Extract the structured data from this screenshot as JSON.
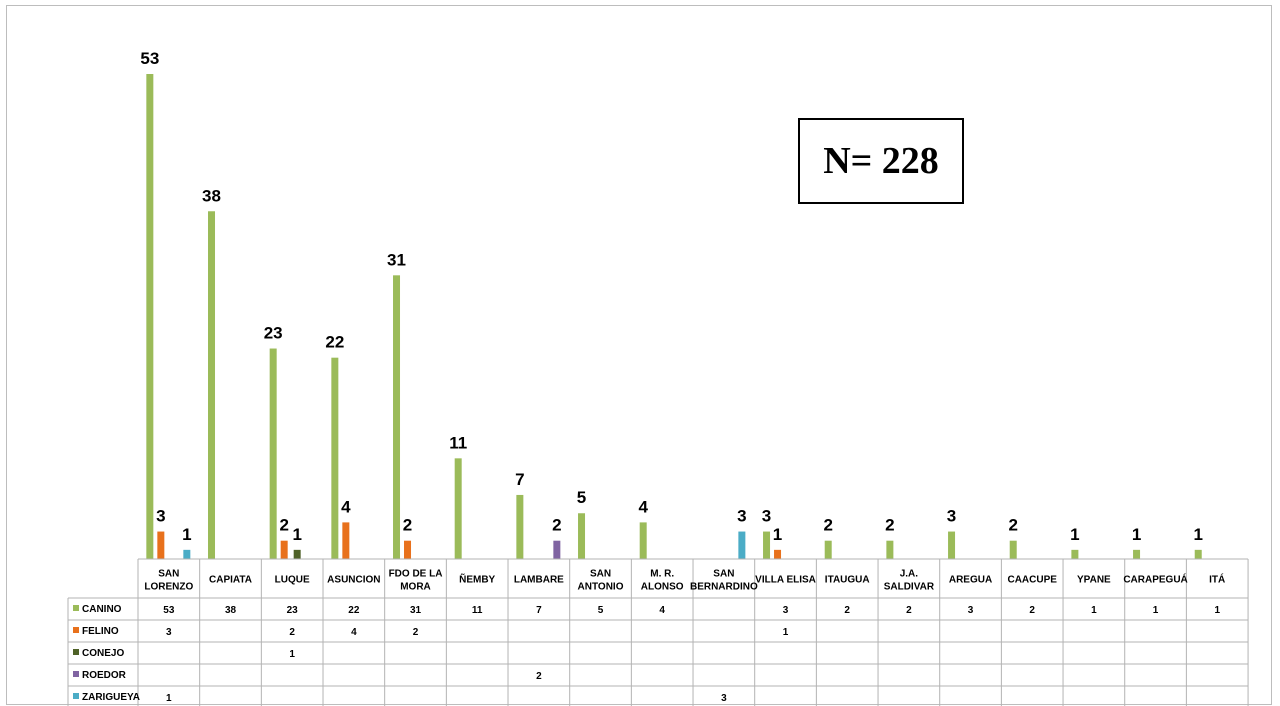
{
  "annotation": "N= 228",
  "colors": {
    "CANINO": "#9bbb59",
    "FELINO": "#e8711c",
    "CONEJO": "#4f6228",
    "ROEDOR": "#8064a2",
    "ZARIGUEYA": "#4bacc6"
  },
  "chart_data": {
    "type": "bar",
    "categories": [
      [
        "SAN",
        "LORENZO"
      ],
      [
        "CAPIATA"
      ],
      [
        "LUQUE"
      ],
      [
        "ASUNCION"
      ],
      [
        "FDO DE LA",
        "MORA"
      ],
      [
        "ÑEMBY"
      ],
      [
        "LAMBARE"
      ],
      [
        "SAN",
        "ANTONIO"
      ],
      [
        "M. R.",
        "ALONSO"
      ],
      [
        "SAN",
        "BERNARDINO"
      ],
      [
        "VILLA ELISA"
      ],
      [
        "ITAUGUA"
      ],
      [
        "J.A.",
        "SALDIVAR"
      ],
      [
        "AREGUA"
      ],
      [
        "CAACUPE"
      ],
      [
        "YPANE"
      ],
      [
        "CARAPEGUÁ"
      ],
      [
        "ITÁ"
      ]
    ],
    "series": [
      {
        "name": "CANINO",
        "values": [
          53,
          38,
          23,
          22,
          31,
          11,
          7,
          5,
          4,
          null,
          3,
          2,
          2,
          3,
          2,
          1,
          1,
          1
        ]
      },
      {
        "name": "FELINO",
        "values": [
          3,
          null,
          2,
          4,
          2,
          null,
          null,
          null,
          null,
          null,
          1,
          null,
          null,
          null,
          null,
          null,
          null,
          null
        ]
      },
      {
        "name": "CONEJO",
        "values": [
          null,
          null,
          1,
          null,
          null,
          null,
          null,
          null,
          null,
          null,
          null,
          null,
          null,
          null,
          null,
          null,
          null,
          null
        ]
      },
      {
        "name": "ROEDOR",
        "values": [
          null,
          null,
          null,
          null,
          null,
          null,
          2,
          null,
          null,
          null,
          null,
          null,
          null,
          null,
          null,
          null,
          null,
          null
        ]
      },
      {
        "name": "ZARIGUEYA",
        "values": [
          1,
          null,
          null,
          null,
          null,
          null,
          null,
          null,
          null,
          3,
          null,
          null,
          null,
          null,
          null,
          null,
          null,
          null
        ]
      }
    ],
    "ylim": [
      0,
      53
    ],
    "grid": false,
    "legend": "data-table"
  }
}
